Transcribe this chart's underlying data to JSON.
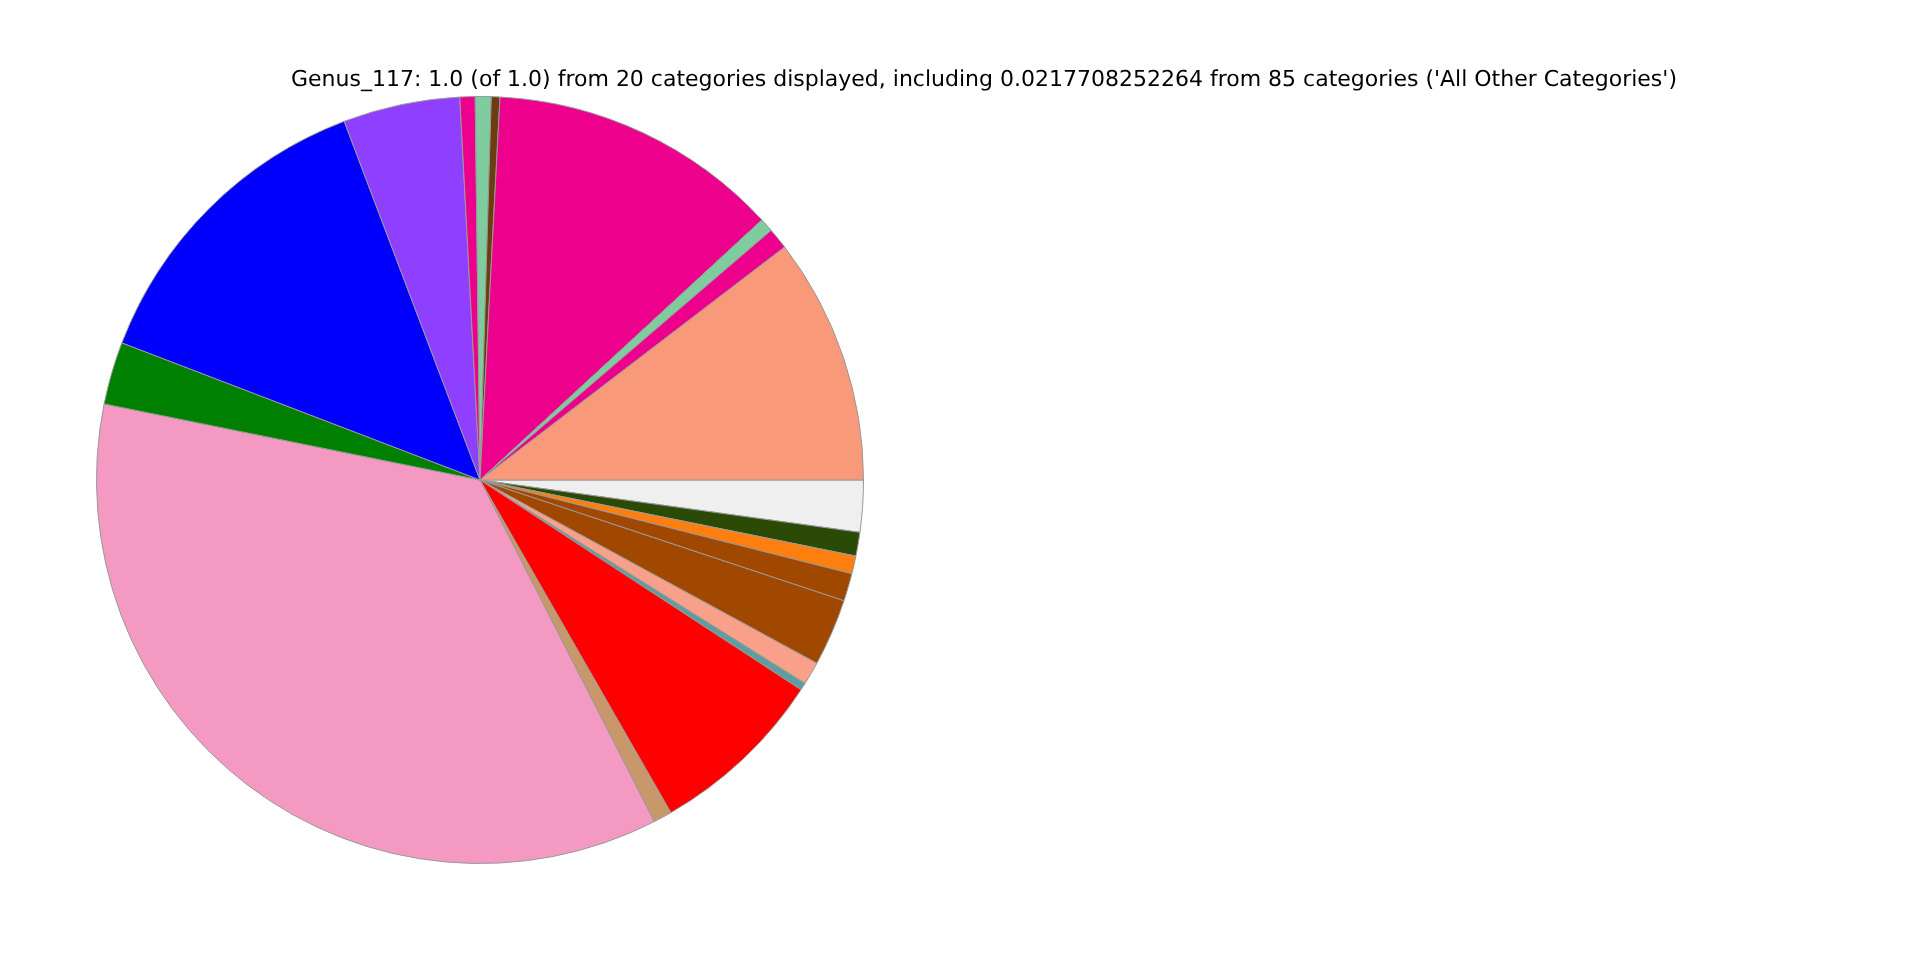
{
  "chart_data": {
    "type": "pie",
    "title": "Genus_117: 1.0 (of 1.0) from 20 categories displayed, including 0.0217708252264 from 85 categories ('All Other Categories')",
    "categories": [
      null,
      null,
      null,
      null,
      null,
      null,
      null,
      null,
      null,
      null,
      null,
      null,
      null,
      null,
      null,
      null,
      null,
      null,
      null,
      null
    ],
    "values": [
      2.18,
      1.0,
      0.75,
      1.17,
      2.83,
      0.97,
      0.31,
      7.5,
      0.78,
      35.69,
      2.64,
      13.42,
      4.92,
      0.64,
      0.67,
      0.36,
      12.31,
      0.58,
      0.89,
      10.39
    ],
    "colors": [
      "#efefef",
      "#2b4a06",
      "#ff7f0e",
      "#a04700",
      "#a04700",
      "#f8a08a",
      "#5f9ea0",
      "#ff0000",
      "#c8976a",
      "#f49ac2",
      "#008000",
      "#0000ff",
      "#8f3fff",
      "#ec008c",
      "#7fcc9f",
      "#6b3d0f",
      "#ec008c",
      "#7fcc9f",
      "#ec008c",
      "#f8997a"
    ],
    "legend": false
  }
}
